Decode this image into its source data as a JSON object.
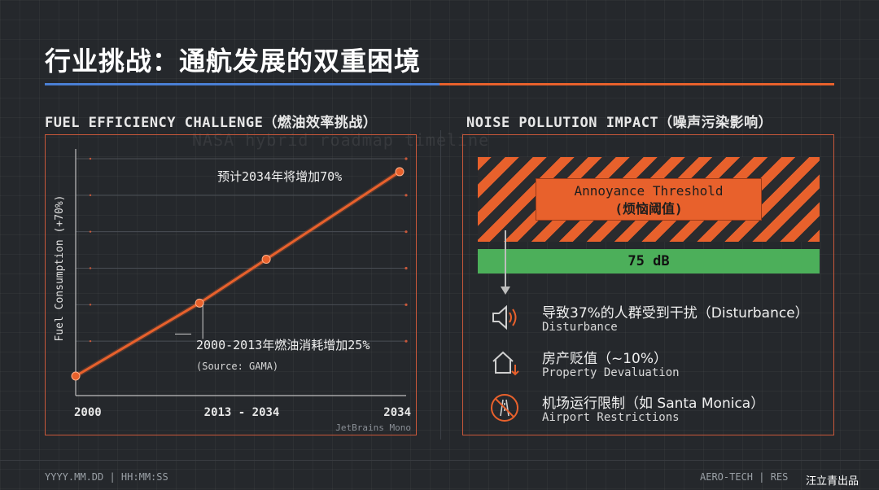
{
  "title": "行业挑战：通航发展的双重困境",
  "left_section_title": "FUEL EFFICIENCY CHALLENGE（燃油效率挑战）",
  "right_section_title": "NOISE POLLUTION IMPACT（噪声污染影响）",
  "ghost_text": "NASA hybrid roadmap timeline",
  "chart_data": {
    "type": "line",
    "x_ticks": [
      "2000",
      "2013 - 2034",
      "2034"
    ],
    "ylabel": "Fuel Consumption (+70%)",
    "series": [
      {
        "x": [
          2000,
          2013,
          2020,
          2034
        ],
        "values": [
          0,
          25,
          40,
          70
        ]
      }
    ],
    "ylim": [
      0,
      75
    ],
    "annotations": {
      "top": "预计2034年将增加70%",
      "mid": "2000-2013年燃油消耗增加25%",
      "source": "(Source: GAMA)"
    },
    "font_note": "JetBrains Mono",
    "colors": {
      "line": "#e8612c",
      "grid": "#4a4e55"
    }
  },
  "noise": {
    "threshold_en": "Annoyance Threshold",
    "threshold_zh": "(烦恼阈值)",
    "db_label": "75 dB",
    "impacts": [
      {
        "icon": "speaker-icon",
        "zh": "导致37%的人群受到干扰（Disturbance）",
        "en": "Disturbance"
      },
      {
        "icon": "house-down-icon",
        "zh": "房产贬值（~10%）",
        "en": "Property Devaluation"
      },
      {
        "icon": "no-runway-icon",
        "zh": "机场运行限制（如 Santa Monica）",
        "en": "Airport Restrictions"
      }
    ],
    "colors": {
      "hazard": "#e8612c",
      "green": "#4caf5a"
    }
  },
  "footer": {
    "left": "YYYY.MM.DD | HH:MM:SS",
    "right": "AERO-TECH | RES",
    "watermark": "汪立青出品"
  }
}
